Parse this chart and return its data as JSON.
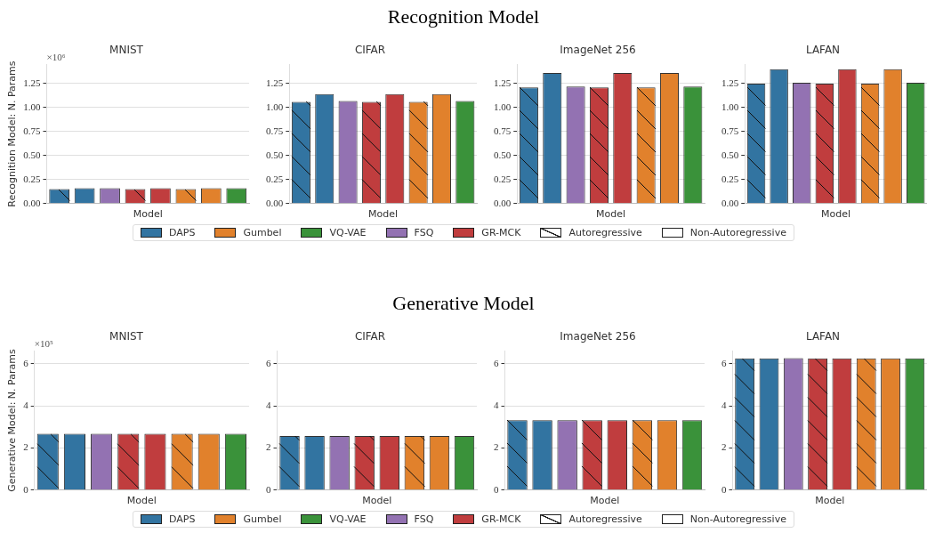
{
  "chart_data": [
    {
      "type": "other",
      "title": "Recognition Model"
    },
    {
      "type": "bar",
      "subtitle": "MNIST",
      "xlabel": "Model",
      "ylabel": "Recognition Model: N. Params",
      "annotations": [
        "×10⁶"
      ],
      "categories": [
        null,
        null,
        null,
        null,
        null,
        null,
        null,
        null
      ],
      "stacked": true,
      "ylim": [
        0,
        1.45
      ],
      "yticks": [
        {
          "value": 0,
          "label": "0.00"
        },
        {
          "value": 0.25,
          "label": "0.25"
        },
        {
          "value": 0.5,
          "label": "0.50"
        },
        {
          "value": 0.75,
          "label": "0.75"
        },
        {
          "value": 1,
          "label": "1.00"
        },
        {
          "value": 1.25,
          "label": "1.25"
        }
      ],
      "grid": "y",
      "legend": "bottom",
      "tick_labels": "y",
      "series": [
        {
          "name": "DAPS",
          "color": "#3274a1",
          "values": [
            null,
            0.16,
            null,
            null,
            null,
            null,
            null,
            null
          ]
        },
        {
          "name": "Gumbel",
          "color": "#e1812c",
          "values": [
            null,
            null,
            null,
            null,
            null,
            null,
            0.16,
            null
          ]
        },
        {
          "name": "VQ-VAE",
          "color": "#3a923a",
          "values": [
            null,
            null,
            null,
            null,
            null,
            null,
            null,
            0.16
          ]
        },
        {
          "name": "FSQ",
          "color": "#9372b2",
          "values": [
            null,
            null,
            0.16,
            null,
            null,
            null,
            null,
            null
          ]
        },
        {
          "name": "GR-MCK",
          "color": "#c03d3e",
          "values": [
            null,
            null,
            null,
            null,
            0.16,
            null,
            null,
            null
          ]
        },
        {
          "name": "Autoregressive",
          "color": "#ffffff",
          "colors": [
            "#3274a1",
            null,
            null,
            "#c03d3e",
            null,
            "#e1812c",
            null,
            null
          ],
          "values": [
            0.15,
            null,
            null,
            0.15,
            null,
            0.15,
            null,
            null
          ]
        },
        {
          "name": "Non-Autoregressive",
          "color": "#ffffff",
          "values": [
            null,
            null,
            null,
            null,
            null,
            null,
            null,
            null
          ]
        }
      ]
    },
    {
      "type": "bar",
      "subtitle": "CIFAR",
      "xlabel": "Model",
      "categories": [
        null,
        null,
        null,
        null,
        null,
        null,
        null,
        null
      ],
      "ylim": [
        0,
        1.45
      ],
      "yticks": [
        {
          "value": 0,
          "label": "0.00"
        },
        {
          "value": 0.25,
          "label": "0.25"
        },
        {
          "value": 0.5,
          "label": "0.50"
        },
        {
          "value": 0.75,
          "label": "0.75"
        },
        {
          "value": 1,
          "label": "1.00"
        },
        {
          "value": 1.25,
          "label": "1.25"
        }
      ],
      "grid": "y",
      "tick_labels": "y",
      "values": [
        1.06,
        1.14,
        1.07,
        1.06,
        1.14,
        1.06,
        1.14,
        1.07
      ],
      "colors": [
        "#3274a1",
        "#3274a1",
        "#9372b2",
        "#c03d3e",
        "#c03d3e",
        "#e1812c",
        "#e1812c",
        "#3a923a"
      ]
    },
    {
      "type": "bar",
      "subtitle": "ImageNet 256",
      "xlabel": "Model",
      "categories": [
        null,
        null,
        null,
        null,
        null,
        null,
        null,
        null
      ],
      "ylim": [
        0,
        1.45
      ],
      "yticks": [
        {
          "value": 0,
          "label": "0.00"
        },
        {
          "value": 0.25,
          "label": "0.25"
        },
        {
          "value": 0.5,
          "label": "0.50"
        },
        {
          "value": 0.75,
          "label": "0.75"
        },
        {
          "value": 1,
          "label": "1.00"
        },
        {
          "value": 1.25,
          "label": "1.25"
        }
      ],
      "grid": "y",
      "tick_labels": "y",
      "values": [
        1.21,
        1.36,
        1.22,
        1.21,
        1.36,
        1.21,
        1.36,
        1.22
      ],
      "colors": [
        "#3274a1",
        "#3274a1",
        "#9372b2",
        "#c03d3e",
        "#c03d3e",
        "#e1812c",
        "#e1812c",
        "#3a923a"
      ]
    },
    {
      "type": "bar",
      "subtitle": "LAFAN",
      "xlabel": "Model",
      "categories": [
        null,
        null,
        null,
        null,
        null,
        null,
        null,
        null
      ],
      "ylim": [
        0,
        1.45
      ],
      "yticks": [
        {
          "value": 0,
          "label": "0.00"
        },
        {
          "value": 0.25,
          "label": "0.25"
        },
        {
          "value": 0.5,
          "label": "0.50"
        },
        {
          "value": 0.75,
          "label": "0.75"
        },
        {
          "value": 1,
          "label": "1.00"
        },
        {
          "value": 1.25,
          "label": "1.25"
        }
      ],
      "grid": "y",
      "tick_labels": "y",
      "values": [
        1.25,
        1.4,
        1.26,
        1.25,
        1.4,
        1.25,
        1.4,
        1.26
      ],
      "colors": [
        "#3274a1",
        "#3274a1",
        "#9372b2",
        "#c03d3e",
        "#c03d3e",
        "#e1812c",
        "#e1812c",
        "#3a923a"
      ]
    },
    {
      "type": "other",
      "title": "Generative Model"
    },
    {
      "type": "bar",
      "subtitle": "MNIST",
      "xlabel": "Model",
      "ylabel": "Generative Model: N. Params",
      "annotations": [
        "×10⁵"
      ],
      "categories": [
        null,
        null,
        null,
        null,
        null,
        null,
        null,
        null
      ],
      "stacked": true,
      "ylim": [
        0,
        6.6
      ],
      "yticks": [
        0,
        2,
        4,
        6
      ],
      "grid": "y",
      "legend": "bottom",
      "tick_labels": "y",
      "series": [
        {
          "name": "DAPS",
          "color": "#3274a1",
          "values": [
            null,
            2.67,
            null,
            null,
            null,
            null,
            null,
            null
          ]
        },
        {
          "name": "Gumbel",
          "color": "#e1812c",
          "values": [
            null,
            null,
            null,
            null,
            null,
            null,
            2.67,
            null
          ]
        },
        {
          "name": "VQ-VAE",
          "color": "#3a923a",
          "values": [
            null,
            null,
            null,
            null,
            null,
            null,
            null,
            2.67
          ]
        },
        {
          "name": "FSQ",
          "color": "#9372b2",
          "values": [
            null,
            null,
            2.67,
            null,
            null,
            null,
            null,
            null
          ]
        },
        {
          "name": "GR-MCK",
          "color": "#c03d3e",
          "values": [
            null,
            null,
            null,
            null,
            2.67,
            null,
            null,
            null
          ]
        },
        {
          "name": "Autoregressive",
          "color": "#ffffff",
          "colors": [
            "#3274a1",
            null,
            null,
            "#c03d3e",
            null,
            "#e1812c",
            null,
            null
          ],
          "values": [
            2.67,
            null,
            null,
            2.67,
            null,
            2.67,
            null,
            null
          ]
        },
        {
          "name": "Non-Autoregressive",
          "color": "#ffffff",
          "values": [
            null,
            null,
            null,
            null,
            null,
            null,
            null,
            null
          ]
        }
      ]
    },
    {
      "type": "bar",
      "subtitle": "CIFAR",
      "xlabel": "Model",
      "categories": [
        null,
        null,
        null,
        null,
        null,
        null,
        null,
        null
      ],
      "ylim": [
        0,
        6.6
      ],
      "yticks": [
        0,
        2,
        4,
        6
      ],
      "grid": "y",
      "tick_labels": "y",
      "values": [
        2.57,
        2.57,
        2.57,
        2.57,
        2.57,
        2.57,
        2.57,
        2.57
      ],
      "colors": [
        "#3274a1",
        "#3274a1",
        "#9372b2",
        "#c03d3e",
        "#c03d3e",
        "#e1812c",
        "#e1812c",
        "#3a923a"
      ]
    },
    {
      "type": "bar",
      "subtitle": "ImageNet 256",
      "xlabel": "Model",
      "categories": [
        null,
        null,
        null,
        null,
        null,
        null,
        null,
        null
      ],
      "ylim": [
        0,
        6.6
      ],
      "yticks": [
        0,
        2,
        4,
        6
      ],
      "grid": "y",
      "tick_labels": "y",
      "values": [
        3.31,
        3.31,
        3.31,
        3.31,
        3.31,
        3.31,
        3.31,
        3.31
      ],
      "colors": [
        "#3274a1",
        "#3274a1",
        "#9372b2",
        "#c03d3e",
        "#c03d3e",
        "#e1812c",
        "#e1812c",
        "#3a923a"
      ]
    },
    {
      "type": "bar",
      "subtitle": "LAFAN",
      "xlabel": "Model",
      "categories": [
        null,
        null,
        null,
        null,
        null,
        null,
        null,
        null
      ],
      "ylim": [
        0,
        6.6
      ],
      "yticks": [
        0,
        2,
        4,
        6
      ],
      "grid": "y",
      "tick_labels": "y",
      "values": [
        6.25,
        6.25,
        6.26,
        6.25,
        6.25,
        6.25,
        6.25,
        6.25
      ],
      "colors": [
        "#3274a1",
        "#3274a1",
        "#9372b2",
        "#c03d3e",
        "#c03d3e",
        "#e1812c",
        "#e1812c",
        "#3a923a"
      ]
    }
  ]
}
